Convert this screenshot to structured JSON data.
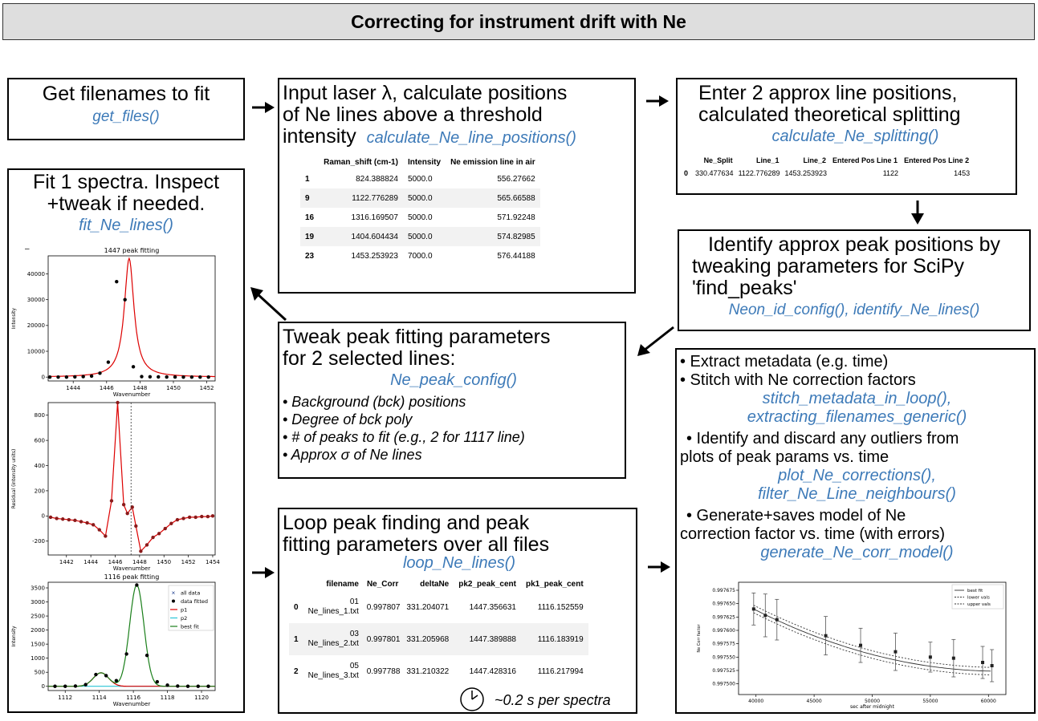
{
  "title": "Correcting for instrument drift with Ne",
  "get_files": {
    "text": "Get filenames to fit",
    "func": "get_files()"
  },
  "line_positions": {
    "line1": "Input laser λ, calculate positions",
    "line2": "of Ne lines above a threshold",
    "line3": "intensity",
    "func": "calculate_Ne_line_positions()",
    "table": {
      "headers": [
        "",
        "Raman_shift (cm-1)",
        "Intensity",
        "Ne emission line in air"
      ],
      "rows": [
        [
          "1",
          "824.388824",
          "5000.0",
          "556.27662"
        ],
        [
          "9",
          "1122.776289",
          "5000.0",
          "565.66588"
        ],
        [
          "16",
          "1316.169507",
          "5000.0",
          "571.92248"
        ],
        [
          "19",
          "1404.604434",
          "5000.0",
          "574.82985"
        ],
        [
          "23",
          "1453.253923",
          "7000.0",
          "576.44188"
        ]
      ]
    }
  },
  "splitting": {
    "line1": "Enter 2 approx line positions,",
    "line2": "calculated theoretical splitting",
    "func": "calculate_Ne_splitting()",
    "table": {
      "headers": [
        "",
        "Ne_Split",
        "Line_1",
        "Line_2",
        "Entered Pos Line 1",
        "Entered Pos Line 2"
      ],
      "rows": [
        [
          "0",
          "330.477634",
          "1122.776289",
          "1453.253923",
          "1122",
          "1453"
        ]
      ]
    }
  },
  "identify": {
    "line1": "Identify approx peak positions by",
    "line2": "tweaking parameters for SciPy",
    "line3": "'find_peaks'",
    "func": "Neon_id_config(), identify_Ne_lines()"
  },
  "fit": {
    "line1": "Fit 1 spectra. Inspect",
    "line2": "+tweak if needed.",
    "func": "fit_Ne_lines()",
    "dash": "–"
  },
  "tweak": {
    "line1": "Tweak peak fitting parameters",
    "line2": "for 2 selected lines:",
    "func": "Ne_peak_config()",
    "bullets": [
      "• Background (bck) positions",
      "• Degree of bck poly",
      "• # of peaks  to fit (e.g., 2 for 1117 line)",
      "• Approx σ of Ne lines"
    ]
  },
  "loop": {
    "line1": "Loop peak finding and peak",
    "line2": "fitting parameters over all files",
    "func": "loop_Ne_lines()",
    "timing": "~0.2 s per spectra",
    "table": {
      "headers": [
        "",
        "filename",
        "Ne_Corr",
        "deltaNe",
        "pk2_peak_cent",
        "pk1_peak_cent"
      ],
      "rows": [
        [
          "0",
          "01\nNe_lines_1.txt",
          "0.997807",
          "331.204071",
          "1447.356631",
          "1116.152559"
        ],
        [
          "1",
          "03\nNe_lines_2.txt",
          "0.997801",
          "331.205968",
          "1447.389888",
          "1116.183919"
        ],
        [
          "2",
          "05\nNe_lines_3.txt",
          "0.997788",
          "331.210322",
          "1447.428316",
          "1116.217994"
        ]
      ]
    }
  },
  "metadata": {
    "b1": "• Extract metadata (e.g. time)",
    "b2": "• Stitch with Ne correction factors",
    "f2a": "stitch_metadata_in_loop(),",
    "f2b": "extracting_filenames_generic()",
    "b3a": "• Identify and discard any outliers from",
    "b3b": "plots of peak params vs. time",
    "f3a": "plot_Ne_corrections(),",
    "f3b": "filter_Ne_Line_neighbours()",
    "b4a": "• Generate+saves model of Ne",
    "b4b": "correction factor vs. time (with errors)",
    "f4": "generate_Ne_corr_model()"
  },
  "chart_data": [
    {
      "type": "line",
      "title": "1447 peak fitting",
      "xlabel": "Wavenumber",
      "ylabel": "Intensity",
      "xlim": [
        1442.5,
        1452.5
      ],
      "ylim": [
        -1500,
        47000
      ],
      "xticks": [
        "1444",
        "1446",
        "1448",
        "1450",
        "1452"
      ],
      "yticks": [
        "0",
        "10000",
        "20000",
        "30000",
        "40000"
      ],
      "points_x": [
        1442.6,
        1443.1,
        1443.6,
        1444.1,
        1444.6,
        1445.1,
        1445.6,
        1446.1,
        1446.6,
        1447.1,
        1447.6,
        1448.1,
        1448.6,
        1449.1,
        1449.6,
        1450.1,
        1450.6,
        1451.1,
        1451.6,
        1452.1
      ],
      "points_y": [
        0,
        0,
        0,
        80,
        180,
        400,
        1500,
        5800,
        37000,
        30000,
        4000,
        200,
        100,
        60,
        40,
        20,
        10,
        10,
        0,
        0
      ],
      "fit_color": "#dd0000"
    },
    {
      "type": "line",
      "xlabel": "Wavenumber",
      "ylabel": "Residual (intensity units)",
      "xlim": [
        1440.5,
        1454.2
      ],
      "ylim": [
        -310,
        900
      ],
      "xticks": [
        "1442",
        "1444",
        "1446",
        "1448",
        "1450",
        "1452",
        "1454"
      ],
      "yticks": [
        "-200",
        "0",
        "200",
        "400",
        "600",
        "800"
      ],
      "x": [
        1440.7,
        1441.2,
        1441.7,
        1442.2,
        1442.7,
        1443.2,
        1443.7,
        1444.2,
        1444.7,
        1445.2,
        1445.7,
        1446.2,
        1446.7,
        1447.0,
        1447.4,
        1447.7,
        1448.1,
        1448.6,
        1449.1,
        1449.6,
        1450.1,
        1450.6,
        1451.1,
        1451.6,
        1452.1,
        1452.6,
        1453.1,
        1453.6,
        1454.0
      ],
      "y": [
        -10,
        -20,
        -25,
        -30,
        -35,
        -45,
        -55,
        -70,
        -110,
        -160,
        120,
        900,
        90,
        20,
        70,
        -80,
        -280,
        -230,
        -170,
        -140,
        -100,
        -60,
        -30,
        -20,
        -10,
        -10,
        -5,
        -5,
        0
      ],
      "vline_x": 1447.3,
      "line_color": "#dd0000"
    },
    {
      "type": "line",
      "title": "1116 peak fitting",
      "xlabel": "Wavenumber",
      "ylabel": "Intensity",
      "xlim": [
        1111,
        1120.8
      ],
      "ylim": [
        -150,
        3700
      ],
      "xticks": [
        "1112",
        "1114",
        "1116",
        "1118",
        "1120"
      ],
      "yticks": [
        "0",
        "500",
        "1000",
        "1500",
        "2000",
        "2500",
        "3000",
        "3500"
      ],
      "legend": [
        "all data",
        "data fitted",
        "p1",
        "p2",
        "best fit"
      ],
      "points_x": [
        1111.4,
        1112.0,
        1112.6,
        1113.2,
        1113.8,
        1114.4,
        1115.0,
        1115.6,
        1116.2,
        1116.8,
        1117.4,
        1118.0,
        1118.6,
        1119.2,
        1119.8,
        1120.4
      ],
      "points_y": [
        0,
        0,
        10,
        60,
        420,
        380,
        200,
        1150,
        3600,
        1100,
        160,
        40,
        10,
        0,
        0,
        0
      ],
      "series_colors": [
        "#dd0000",
        "#29c4d6",
        "#1a7f1a"
      ]
    },
    {
      "type": "line",
      "xlabel": "sec after midnight",
      "ylabel": "Ne Corr factor",
      "xlim": [
        38500,
        61500
      ],
      "ylim": [
        0.99748,
        0.99769
      ],
      "xticks": [
        "40000",
        "45000",
        "50000",
        "55000",
        "60000"
      ],
      "yticks": [
        "0.997500",
        "0.997525",
        "0.997550",
        "0.997575",
        "0.997600",
        "0.997625",
        "0.997650",
        "0.997675"
      ],
      "legend": [
        "best fit",
        "lower vals",
        "upper vals"
      ],
      "points_x": [
        39800,
        40800,
        41800,
        46000,
        49000,
        52000,
        55000,
        57000,
        59500,
        60300
      ],
      "points_y": [
        0.99764,
        0.997628,
        0.99762,
        0.99759,
        0.997572,
        0.99756,
        0.99755,
        0.997548,
        0.99754,
        0.997534
      ],
      "err": [
        3e-05,
        4e-05,
        3.8e-05,
        3.6e-05,
        3.2e-05,
        3.5e-05,
        2.8e-05,
        3.5e-05,
        3e-05,
        3e-05
      ]
    }
  ]
}
